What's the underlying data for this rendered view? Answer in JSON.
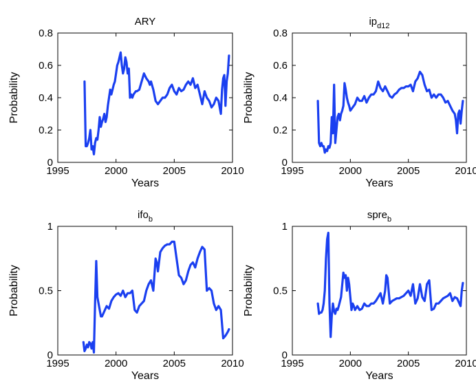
{
  "chart_data": [
    {
      "type": "line",
      "title": "ARY",
      "title_sub": "",
      "xlabel": "Years",
      "ylabel": "Probability",
      "xlim": [
        1995,
        2010
      ],
      "ylim": [
        0,
        0.8
      ],
      "xticks": [
        1995,
        2000,
        2005,
        2010
      ],
      "yticks": [
        0,
        0.2,
        0.4,
        0.6,
        0.8
      ],
      "ytick_labels": [
        "0",
        "0.2",
        "0.4",
        "0.6",
        "0.8"
      ],
      "grid": false,
      "series": [
        {
          "color": "#1a3ff0",
          "x": [
            1997.3,
            1997.4,
            1997.5,
            1997.6,
            1997.7,
            1997.8,
            1997.9,
            1998.0,
            1998.1,
            1998.2,
            1998.3,
            1998.4,
            1998.5,
            1998.6,
            1998.7,
            1998.8,
            1998.9,
            1999.0,
            1999.1,
            1999.2,
            1999.3,
            1999.4,
            1999.5,
            1999.6,
            1999.7,
            1999.8,
            1999.9,
            2000.0,
            2000.1,
            2000.2,
            2000.3,
            2000.4,
            2000.5,
            2000.6,
            2000.7,
            2000.8,
            2000.9,
            2001.0,
            2001.1,
            2001.2,
            2001.3,
            2001.4,
            2001.5,
            2001.6,
            2001.7,
            2001.8,
            2002.0,
            2002.2,
            2002.4,
            2002.6,
            2002.8,
            2002.9,
            2003.0,
            2003.2,
            2003.4,
            2003.6,
            2003.8,
            2004.0,
            2004.2,
            2004.4,
            2004.6,
            2004.8,
            2005.0,
            2005.2,
            2005.4,
            2005.6,
            2005.8,
            2006.0,
            2006.2,
            2006.4,
            2006.6,
            2006.8,
            2007.0,
            2007.2,
            2007.4,
            2007.6,
            2007.8,
            2008.0,
            2008.2,
            2008.4,
            2008.6,
            2008.8,
            2009.0,
            2009.1,
            2009.2,
            2009.3,
            2009.4,
            2009.5,
            2009.6,
            2009.7
          ],
          "y": [
            0.5,
            0.1,
            0.1,
            0.12,
            0.15,
            0.2,
            0.08,
            0.1,
            0.05,
            0.12,
            0.15,
            0.14,
            0.2,
            0.28,
            0.22,
            0.25,
            0.27,
            0.3,
            0.25,
            0.28,
            0.35,
            0.4,
            0.45,
            0.42,
            0.45,
            0.48,
            0.5,
            0.55,
            0.6,
            0.62,
            0.65,
            0.68,
            0.6,
            0.55,
            0.58,
            0.65,
            0.62,
            0.55,
            0.58,
            0.4,
            0.42,
            0.4,
            0.42,
            0.43,
            0.44,
            0.44,
            0.45,
            0.5,
            0.55,
            0.52,
            0.5,
            0.48,
            0.5,
            0.45,
            0.38,
            0.36,
            0.38,
            0.4,
            0.4,
            0.42,
            0.46,
            0.48,
            0.44,
            0.42,
            0.46,
            0.44,
            0.45,
            0.48,
            0.5,
            0.48,
            0.52,
            0.46,
            0.48,
            0.42,
            0.36,
            0.44,
            0.4,
            0.38,
            0.34,
            0.36,
            0.4,
            0.38,
            0.3,
            0.45,
            0.52,
            0.54,
            0.35,
            0.5,
            0.55,
            0.66
          ]
        }
      ]
    },
    {
      "type": "line",
      "title": "ip",
      "title_sub": "d12",
      "xlabel": "Years",
      "ylabel": "Probability",
      "xlim": [
        1995,
        2010
      ],
      "ylim": [
        0,
        0.8
      ],
      "xticks": [
        1995,
        2000,
        2005,
        2010
      ],
      "yticks": [
        0,
        0.2,
        0.4,
        0.6,
        0.8
      ],
      "ytick_labels": [
        "0",
        "0.2",
        "0.4",
        "0.6",
        "0.8"
      ],
      "grid": false,
      "series": [
        {
          "color": "#1a3ff0",
          "x": [
            1997.2,
            1997.3,
            1997.4,
            1997.5,
            1997.6,
            1997.7,
            1997.8,
            1997.9,
            1998.0,
            1998.1,
            1998.2,
            1998.3,
            1998.4,
            1998.5,
            1998.6,
            1998.7,
            1998.8,
            1998.9,
            1999.0,
            1999.1,
            1999.2,
            1999.3,
            1999.4,
            1999.5,
            1999.6,
            1999.7,
            1999.8,
            1999.9,
            2000.0,
            2000.2,
            2000.4,
            2000.6,
            2000.8,
            2001.0,
            2001.2,
            2001.4,
            2001.6,
            2001.8,
            2002.0,
            2002.2,
            2002.4,
            2002.6,
            2002.8,
            2003.0,
            2003.2,
            2003.4,
            2003.6,
            2003.8,
            2004.0,
            2004.2,
            2004.4,
            2004.6,
            2004.8,
            2005.0,
            2005.2,
            2005.4,
            2005.6,
            2005.8,
            2006.0,
            2006.2,
            2006.4,
            2006.6,
            2006.8,
            2007.0,
            2007.2,
            2007.4,
            2007.6,
            2007.8,
            2008.0,
            2008.2,
            2008.4,
            2008.6,
            2008.8,
            2009.0,
            2009.1,
            2009.2,
            2009.3,
            2009.4,
            2009.5,
            2009.6,
            2009.7
          ],
          "y": [
            0.38,
            0.12,
            0.1,
            0.12,
            0.1,
            0.1,
            0.06,
            0.08,
            0.07,
            0.1,
            0.09,
            0.12,
            0.28,
            0.18,
            0.48,
            0.12,
            0.2,
            0.28,
            0.3,
            0.26,
            0.3,
            0.32,
            0.35,
            0.49,
            0.45,
            0.4,
            0.37,
            0.35,
            0.32,
            0.34,
            0.36,
            0.4,
            0.38,
            0.38,
            0.41,
            0.37,
            0.4,
            0.42,
            0.42,
            0.44,
            0.5,
            0.46,
            0.44,
            0.47,
            0.44,
            0.41,
            0.4,
            0.42,
            0.43,
            0.45,
            0.46,
            0.46,
            0.47,
            0.47,
            0.48,
            0.44,
            0.5,
            0.52,
            0.56,
            0.54,
            0.48,
            0.44,
            0.45,
            0.4,
            0.42,
            0.4,
            0.42,
            0.42,
            0.4,
            0.37,
            0.38,
            0.35,
            0.32,
            0.3,
            0.26,
            0.18,
            0.3,
            0.32,
            0.24,
            0.32,
            0.38
          ]
        }
      ]
    },
    {
      "type": "line",
      "title": "ifo",
      "title_sub": "b",
      "xlabel": "Years",
      "ylabel": "Probability",
      "xlim": [
        1995,
        2010
      ],
      "ylim": [
        0,
        1
      ],
      "xticks": [
        1995,
        2000,
        2005,
        2010
      ],
      "yticks": [
        0,
        0.5,
        1
      ],
      "ytick_labels": [
        "0",
        "0.5",
        "1"
      ],
      "grid": false,
      "series": [
        {
          "color": "#1a3ff0",
          "x": [
            1997.2,
            1997.3,
            1997.4,
            1997.5,
            1997.6,
            1997.7,
            1997.8,
            1997.9,
            1998.0,
            1998.1,
            1998.2,
            1998.3,
            1998.4,
            1998.5,
            1998.6,
            1998.7,
            1998.8,
            1998.9,
            1999.0,
            1999.2,
            1999.4,
            1999.6,
            1999.8,
            2000.0,
            2000.2,
            2000.4,
            2000.6,
            2000.8,
            2001.0,
            2001.2,
            2001.4,
            2001.6,
            2001.8,
            2002.0,
            2002.2,
            2002.4,
            2002.6,
            2002.8,
            2003.0,
            2003.2,
            2003.4,
            2003.5,
            2003.6,
            2003.8,
            2004.0,
            2004.2,
            2004.4,
            2004.6,
            2004.8,
            2005.0,
            2005.2,
            2005.4,
            2005.6,
            2005.8,
            2006.0,
            2006.2,
            2006.4,
            2006.6,
            2006.8,
            2007.0,
            2007.2,
            2007.4,
            2007.6,
            2007.8,
            2008.0,
            2008.2,
            2008.4,
            2008.6,
            2008.8,
            2009.0,
            2009.2,
            2009.4,
            2009.6,
            2009.7
          ],
          "y": [
            0.1,
            0.03,
            0.05,
            0.08,
            0.06,
            0.1,
            0.09,
            0.05,
            0.1,
            0.02,
            0.4,
            0.73,
            0.45,
            0.4,
            0.35,
            0.3,
            0.3,
            0.32,
            0.34,
            0.38,
            0.36,
            0.42,
            0.45,
            0.47,
            0.48,
            0.46,
            0.5,
            0.45,
            0.48,
            0.48,
            0.5,
            0.35,
            0.33,
            0.38,
            0.4,
            0.42,
            0.5,
            0.55,
            0.58,
            0.5,
            0.75,
            0.72,
            0.65,
            0.8,
            0.83,
            0.85,
            0.86,
            0.86,
            0.88,
            0.88,
            0.75,
            0.62,
            0.6,
            0.55,
            0.58,
            0.65,
            0.7,
            0.72,
            0.68,
            0.75,
            0.8,
            0.84,
            0.82,
            0.5,
            0.52,
            0.5,
            0.4,
            0.35,
            0.38,
            0.35,
            0.13,
            0.15,
            0.18,
            0.2
          ]
        }
      ]
    },
    {
      "type": "line",
      "title": "spre",
      "title_sub": "b",
      "xlabel": "Years",
      "ylabel": "Probability",
      "xlim": [
        1995,
        2010
      ],
      "ylim": [
        0,
        1
      ],
      "xticks": [
        1995,
        2000,
        2005,
        2010
      ],
      "yticks": [
        0,
        0.5,
        1
      ],
      "ytick_labels": [
        "0",
        "0.5",
        "1"
      ],
      "grid": false,
      "series": [
        {
          "color": "#1a3ff0",
          "x": [
            1997.2,
            1997.3,
            1997.4,
            1997.5,
            1997.6,
            1997.7,
            1997.8,
            1997.9,
            1998.0,
            1998.1,
            1998.2,
            1998.3,
            1998.4,
            1998.5,
            1998.6,
            1998.7,
            1998.8,
            1998.9,
            1999.0,
            1999.2,
            1999.4,
            1999.5,
            1999.6,
            1999.7,
            1999.8,
            1999.9,
            2000.0,
            2000.1,
            2000.2,
            2000.3,
            2000.4,
            2000.6,
            2000.8,
            2001.0,
            2001.2,
            2001.4,
            2001.6,
            2001.8,
            2002.0,
            2002.2,
            2002.4,
            2002.6,
            2002.8,
            2003.0,
            2003.1,
            2003.2,
            2003.4,
            2003.6,
            2003.8,
            2004.0,
            2004.2,
            2004.4,
            2004.6,
            2004.8,
            2005.0,
            2005.2,
            2005.4,
            2005.6,
            2005.8,
            2006.0,
            2006.2,
            2006.4,
            2006.6,
            2006.8,
            2007.0,
            2007.2,
            2007.4,
            2007.6,
            2007.8,
            2008.0,
            2008.2,
            2008.4,
            2008.6,
            2008.8,
            2009.0,
            2009.2,
            2009.4,
            2009.5,
            2009.6,
            2009.7
          ],
          "y": [
            0.4,
            0.32,
            0.33,
            0.33,
            0.35,
            0.4,
            0.5,
            0.75,
            0.9,
            0.95,
            0.4,
            0.14,
            0.3,
            0.4,
            0.34,
            0.32,
            0.36,
            0.35,
            0.38,
            0.45,
            0.64,
            0.6,
            0.62,
            0.5,
            0.6,
            0.55,
            0.45,
            0.35,
            0.4,
            0.38,
            0.35,
            0.38,
            0.35,
            0.36,
            0.4,
            0.38,
            0.38,
            0.4,
            0.4,
            0.42,
            0.45,
            0.48,
            0.4,
            0.5,
            0.62,
            0.6,
            0.4,
            0.42,
            0.43,
            0.44,
            0.44,
            0.45,
            0.46,
            0.48,
            0.5,
            0.46,
            0.55,
            0.4,
            0.44,
            0.55,
            0.45,
            0.42,
            0.55,
            0.58,
            0.35,
            0.36,
            0.4,
            0.4,
            0.42,
            0.44,
            0.45,
            0.46,
            0.48,
            0.42,
            0.45,
            0.44,
            0.4,
            0.38,
            0.5,
            0.56
          ]
        }
      ]
    }
  ]
}
